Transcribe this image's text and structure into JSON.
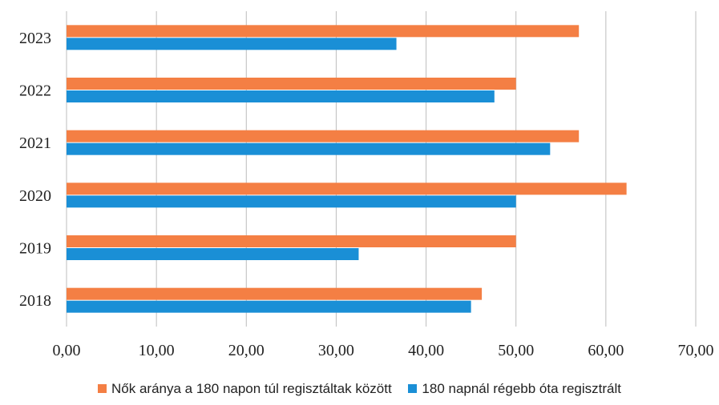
{
  "chart_data": {
    "type": "bar",
    "orientation": "horizontal",
    "categories": [
      "2023",
      "2022",
      "2021",
      "2020",
      "2019",
      "2018"
    ],
    "series": [
      {
        "name": "Nők aránya a 180 napon túl regisztáltak között",
        "color": "#f47f44",
        "values": [
          57.0,
          50.0,
          57.0,
          62.3,
          50.0,
          46.2
        ]
      },
      {
        "name": "180 napnál régebb óta regisztrált",
        "color": "#1a8fd6",
        "values": [
          36.7,
          47.6,
          53.8,
          50.0,
          32.5,
          45.0
        ]
      }
    ],
    "xlim": [
      0,
      70
    ],
    "xticks": [
      "0,00",
      "10,00",
      "20,00",
      "30,00",
      "40,00",
      "50,00",
      "60,00",
      "70,00"
    ],
    "grid": true,
    "legend_position": "bottom"
  }
}
